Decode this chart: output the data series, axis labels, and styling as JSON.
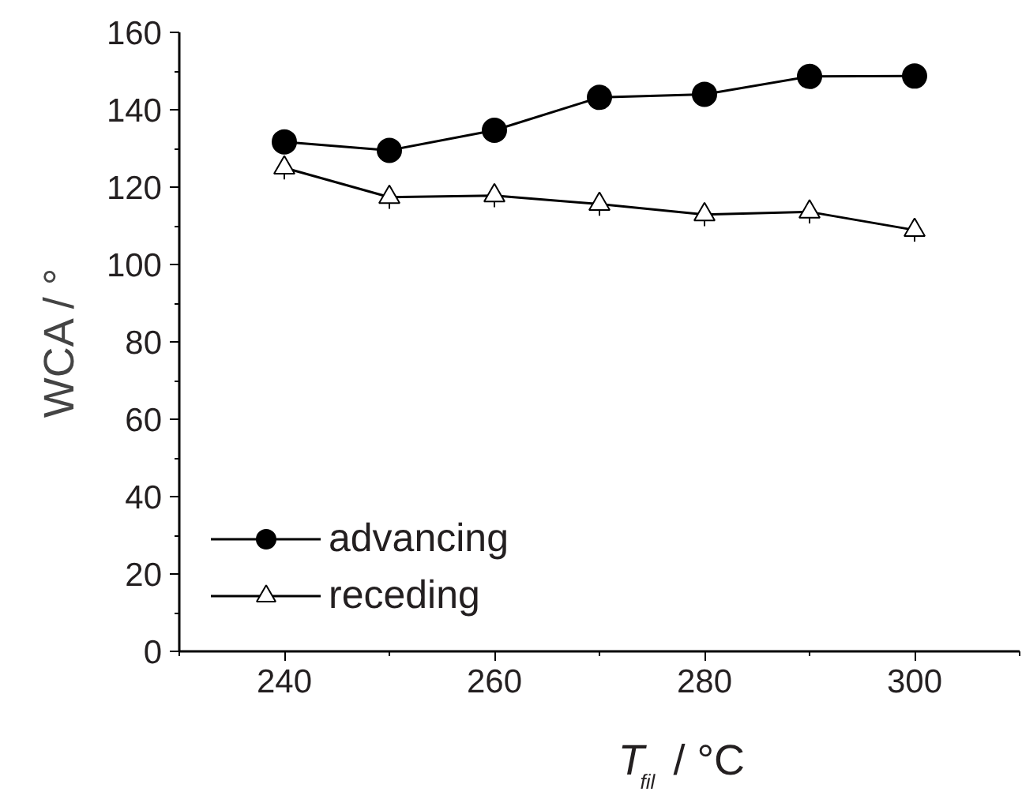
{
  "chart_data": {
    "type": "line",
    "xlabel": "T$_{fil}$ / °C",
    "ylabel": "WCA / °",
    "x": [
      240,
      250,
      260,
      270,
      280,
      290,
      300
    ],
    "series": [
      {
        "name": "advancing",
        "color": "#000000",
        "marker": "circle",
        "values": [
          131.7,
          129.5,
          134.7,
          143.2,
          144,
          148.6,
          148.7
        ]
      },
      {
        "name": "receding",
        "color": "#000000",
        "marker": "triangle",
        "values": [
          125,
          117.4,
          117.8,
          115.6,
          112.9,
          113.6,
          108.9
        ],
        "errors": [
          3,
          3,
          3,
          3,
          3,
          3,
          3
        ]
      }
    ],
    "xlim": [
      230,
      310
    ],
    "ylim": [
      0,
      160
    ],
    "xticks": [
      240,
      260,
      280,
      300
    ],
    "yticks": [
      0,
      20,
      40,
      60,
      80,
      100,
      120,
      140,
      160
    ],
    "legend": "bottom left",
    "grid": false,
    "line_style": "solid"
  }
}
